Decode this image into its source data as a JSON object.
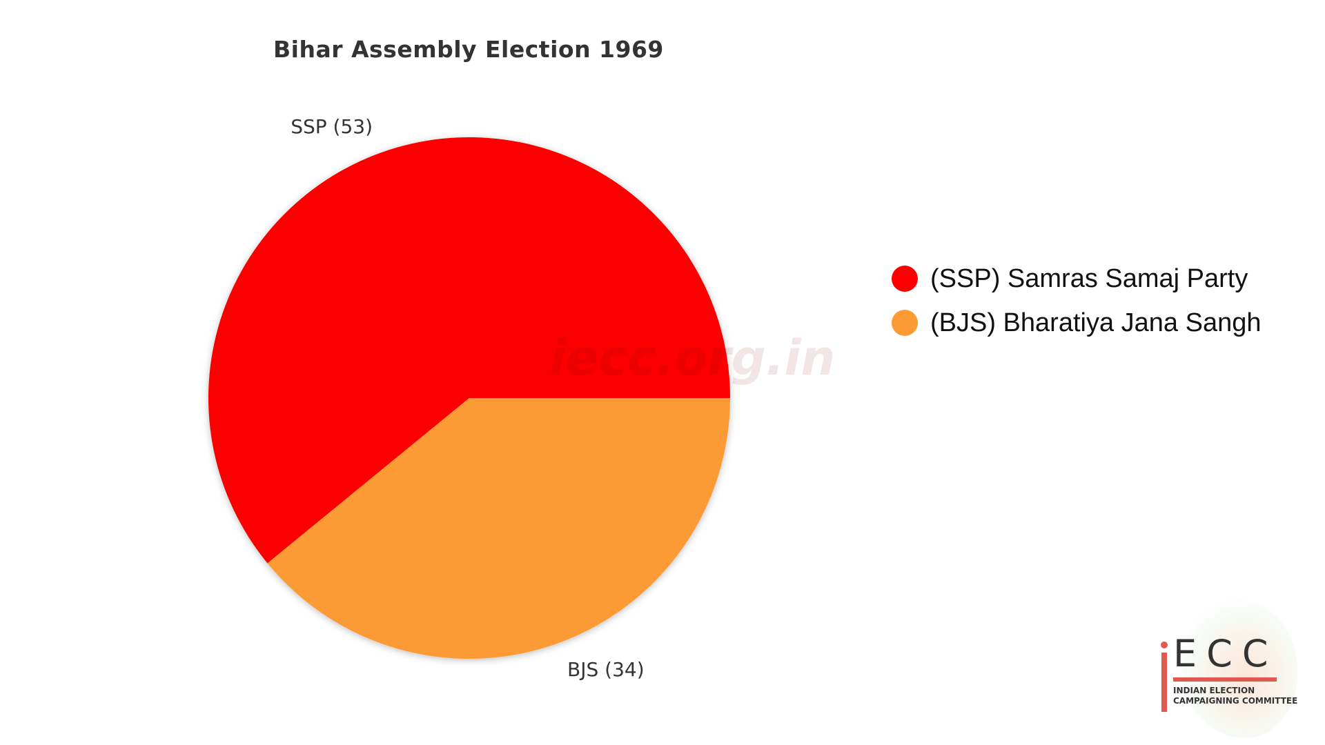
{
  "chart_data": {
    "type": "pie",
    "title": "Bihar Assembly Election 1969",
    "slices": [
      {
        "label": "SSP (53)",
        "value": 53,
        "color": "#fb0000"
      },
      {
        "label": "BJS (34)",
        "value": 34,
        "color": "#fc9a35"
      }
    ],
    "legend": {
      "placement": "right",
      "items": [
        {
          "label": "(SSP) Samras Samaj Party",
          "color": "#fb0000"
        },
        {
          "label": "(BJS) Bharatiya Jana Sangh",
          "color": "#fc9a35"
        }
      ]
    }
  },
  "watermark": "iecc.org.in",
  "logo": {
    "text": "ECC",
    "subtitle_line1": "INDIAN ELECTION",
    "subtitle_line2": "CAMPAIGNING COMMITTEE"
  }
}
